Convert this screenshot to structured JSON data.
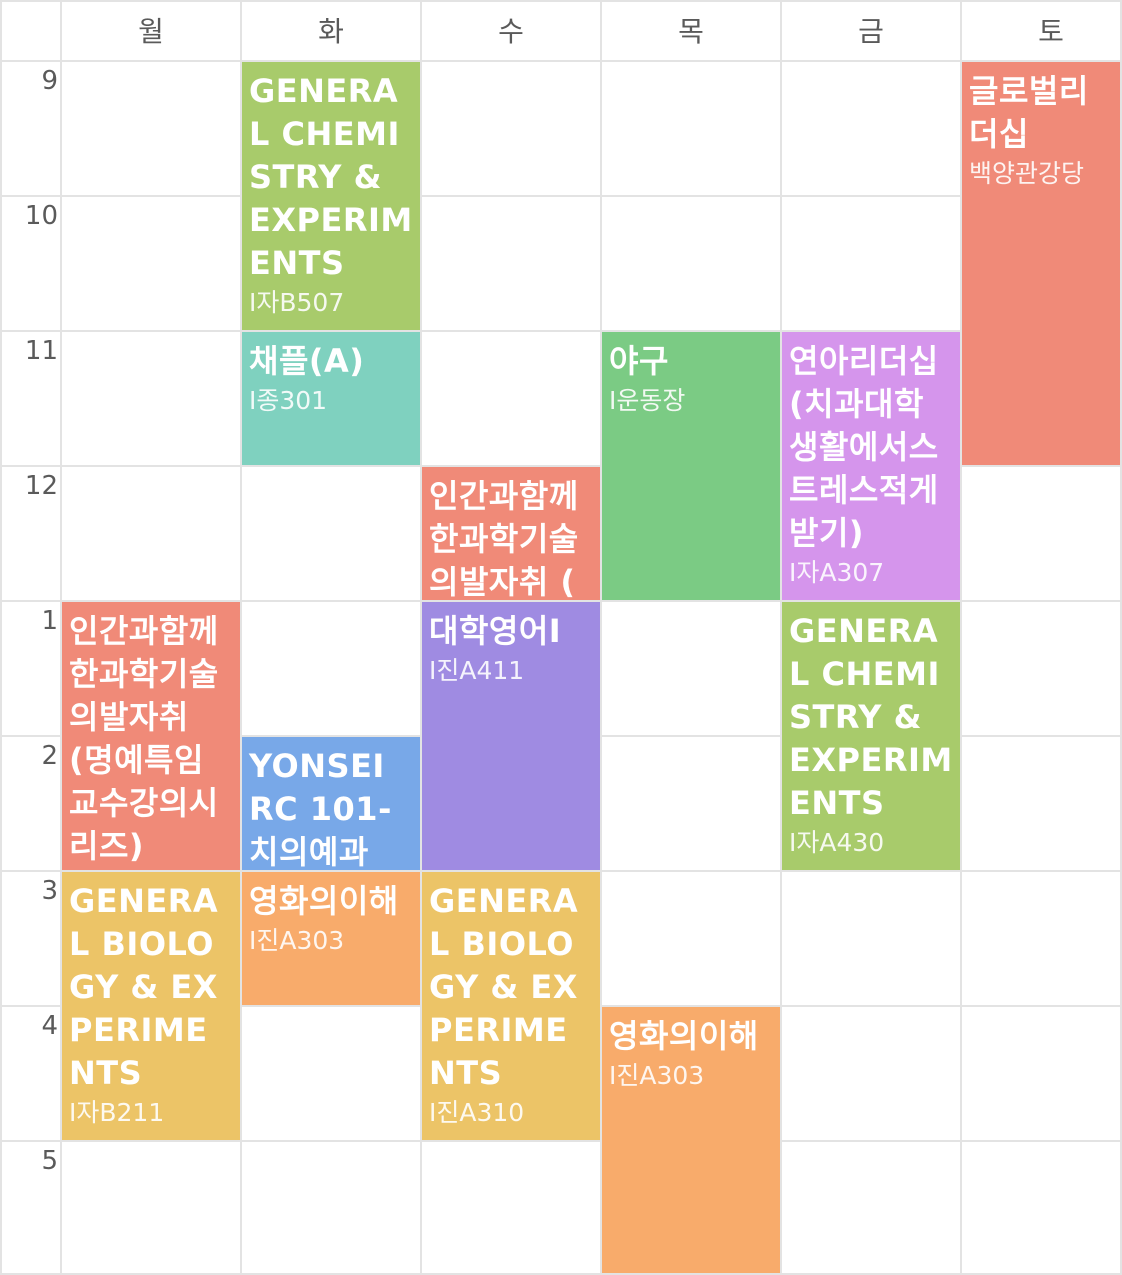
{
  "days": [
    "월",
    "화",
    "수",
    "목",
    "금",
    "토"
  ],
  "hours": [
    "9",
    "10",
    "11",
    "12",
    "1",
    "2",
    "3",
    "4",
    "5"
  ],
  "colors": {
    "green": "#a8cb6b",
    "teal": "#7fd1bf",
    "salmon": "#f08a78",
    "mint": "#7bcb84",
    "purple": "#9f8be2",
    "lilac": "#d595ec",
    "blue": "#78a8e8",
    "yellow": "#ecc467",
    "orange": "#f8ab6b",
    "gridline": "#e3e3e3"
  },
  "courses": [
    {
      "title": "GENERAL CHEMISTRY & EXPERIMENTS",
      "room": "I자B507",
      "color": "#a8cb6b"
    },
    {
      "title": "채플(A)",
      "room": "I종301",
      "color": "#7fd1bf"
    },
    {
      "title": "글로벌리더십",
      "room": "백양관강당",
      "color": "#f08a78"
    },
    {
      "title": "야구",
      "room": "I운동장",
      "color": "#7bcb84"
    },
    {
      "title": "연아리더십(치과대학생활에서스트레스적게받기)",
      "room": "I자A307",
      "color": "#d595ec"
    },
    {
      "title": "인간과함께한과학기술의발자취 (",
      "room": "",
      "color": "#f08a78"
    },
    {
      "title": "인간과함께한과학기술의발자취 (명예특임교수강의시리즈)",
      "room": "",
      "color": "#f08a78"
    },
    {
      "title": "대학영어I",
      "room": "I진A411",
      "color": "#9f8be2"
    },
    {
      "title": "GENERAL CHEMISTRY & EXPERIMENTS",
      "room": "I자A430",
      "color": "#a8cb6b"
    },
    {
      "title": "YONSEI RC 101-치의예과",
      "room": "",
      "color": "#78a8e8"
    },
    {
      "title": "GENERAL BIOLOGY & EXPERIMENTS",
      "room": "I자B211",
      "color": "#ecc467"
    },
    {
      "title": "영화의이해",
      "room": "I진A303",
      "color": "#f8ab6b"
    },
    {
      "title": "GENERAL BIOLOGY & EXPERIMENTS",
      "room": "I진A310",
      "color": "#ecc467"
    },
    {
      "title": "영화의이해",
      "room": "I진A303",
      "color": "#f8ab6b"
    }
  ]
}
